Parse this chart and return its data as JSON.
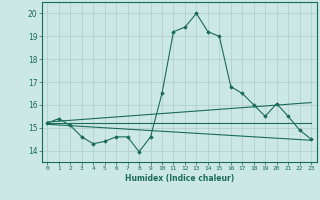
{
  "xlabel": "Humidex (Indice chaleur)",
  "x_ticks": [
    0,
    1,
    2,
    3,
    4,
    5,
    6,
    7,
    8,
    9,
    10,
    11,
    12,
    13,
    14,
    15,
    16,
    17,
    18,
    19,
    20,
    21,
    22,
    23
  ],
  "ylim": [
    13.5,
    20.5
  ],
  "xlim": [
    -0.5,
    23.5
  ],
  "yticks": [
    14,
    15,
    16,
    17,
    18,
    19,
    20
  ],
  "bg_color": "#cce8e4",
  "grid_color": "#b0ccc8",
  "line_color": "#1a6b5a",
  "line1_x": [
    0,
    1,
    2,
    3,
    4,
    5,
    6,
    7,
    8,
    9,
    10,
    11,
    12,
    13,
    14,
    15,
    16,
    17,
    18,
    19,
    20,
    21,
    22,
    23
  ],
  "line1_y": [
    15.2,
    15.4,
    15.1,
    14.6,
    14.3,
    14.4,
    14.6,
    14.6,
    13.95,
    14.6,
    16.5,
    19.2,
    19.4,
    20.0,
    19.2,
    19.0,
    16.8,
    16.5,
    16.0,
    15.5,
    16.05,
    15.5,
    14.9,
    14.5
  ],
  "line2_x": [
    0,
    23
  ],
  "line2_y": [
    15.2,
    15.2
  ],
  "line3_x": [
    0,
    23
  ],
  "line3_y": [
    15.15,
    14.45
  ],
  "line4_x": [
    0,
    23
  ],
  "line4_y": [
    15.25,
    16.1
  ]
}
